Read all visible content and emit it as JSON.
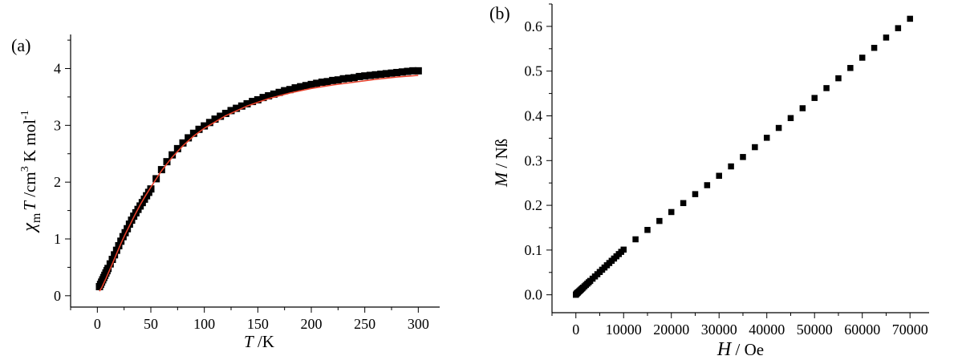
{
  "chart_data": [
    {
      "type": "scatter",
      "panel_label": "(a)",
      "xlabel_italic": "T",
      "xlabel_rest": " /K",
      "ylabel_chi": "χ",
      "ylabel_sub": "m",
      "ylabel_T": "T",
      "ylabel_pre": " /cm",
      "ylabel_sup": "3",
      "ylabel_mid": " K mol",
      "ylabel_sup2": "-1",
      "xlim": [
        -25,
        320
      ],
      "ylim": [
        -0.2,
        4.6
      ],
      "xticks": [
        0,
        50,
        100,
        150,
        200,
        250,
        300
      ],
      "xtick_labels": [
        "0",
        "50",
        "100",
        "150",
        "200",
        "250",
        "300"
      ],
      "yticks": [
        0,
        1,
        2,
        3,
        4
      ],
      "ytick_labels": [
        "0",
        "1",
        "2",
        "3",
        "4"
      ],
      "marker_color": "#000000",
      "fit_color": "#e8402a",
      "series": [
        {
          "name": "experimental",
          "x": [
            2,
            3,
            4,
            5,
            6,
            7,
            8,
            9,
            10,
            12,
            14,
            16,
            18,
            20,
            22,
            24,
            26,
            28,
            30,
            32,
            34,
            36,
            38,
            40,
            42,
            44,
            46,
            48,
            50,
            55,
            60,
            65,
            70,
            75,
            80,
            85,
            90,
            95,
            100,
            105,
            110,
            115,
            120,
            125,
            130,
            135,
            140,
            145,
            150,
            155,
            160,
            165,
            170,
            175,
            180,
            185,
            190,
            195,
            200,
            205,
            210,
            215,
            220,
            225,
            230,
            235,
            240,
            245,
            250,
            255,
            260,
            265,
            270,
            275,
            280,
            285,
            290,
            295,
            300
          ],
          "y": [
            0.16,
            0.2,
            0.24,
            0.28,
            0.32,
            0.36,
            0.4,
            0.44,
            0.48,
            0.56,
            0.64,
            0.72,
            0.8,
            0.88,
            0.96,
            1.04,
            1.11,
            1.18,
            1.26,
            1.33,
            1.4,
            1.46,
            1.52,
            1.58,
            1.64,
            1.7,
            1.76,
            1.82,
            1.88,
            2.06,
            2.22,
            2.36,
            2.48,
            2.59,
            2.69,
            2.78,
            2.86,
            2.93,
            2.99,
            3.05,
            3.11,
            3.16,
            3.21,
            3.26,
            3.3,
            3.34,
            3.38,
            3.42,
            3.45,
            3.49,
            3.52,
            3.55,
            3.58,
            3.61,
            3.63,
            3.66,
            3.68,
            3.7,
            3.72,
            3.74,
            3.76,
            3.77,
            3.79,
            3.8,
            3.82,
            3.83,
            3.84,
            3.86,
            3.87,
            3.88,
            3.89,
            3.9,
            3.91,
            3.92,
            3.93,
            3.94,
            3.95,
            3.96,
            3.96
          ]
        },
        {
          "name": "fit",
          "x": [
            2,
            4,
            6,
            8,
            10,
            14,
            18,
            22,
            26,
            30,
            35,
            40,
            45,
            50,
            60,
            70,
            80,
            90,
            100,
            120,
            140,
            160,
            180,
            200,
            220,
            240,
            260,
            280,
            300
          ],
          "y": [
            0.08,
            0.14,
            0.22,
            0.3,
            0.39,
            0.56,
            0.74,
            0.92,
            1.08,
            1.23,
            1.42,
            1.6,
            1.76,
            1.91,
            2.2,
            2.44,
            2.64,
            2.81,
            2.95,
            3.17,
            3.34,
            3.47,
            3.57,
            3.65,
            3.71,
            3.76,
            3.81,
            3.85,
            3.88
          ]
        }
      ]
    },
    {
      "type": "scatter",
      "panel_label": "(b)",
      "xlabel_italic": "H",
      "xlabel_rest": " / Oe",
      "ylabel_italic": "M",
      "ylabel_rest": " / Nß",
      "xlim": [
        -5000,
        74000
      ],
      "ylim": [
        -0.04,
        0.65
      ],
      "xticks": [
        0,
        10000,
        20000,
        30000,
        40000,
        50000,
        60000,
        70000
      ],
      "xtick_labels": [
        "0",
        "10000",
        "20000",
        "30000",
        "40000",
        "50000",
        "60000",
        "70000"
      ],
      "yticks": [
        0.0,
        0.1,
        0.2,
        0.3,
        0.4,
        0.5,
        0.6
      ],
      "ytick_labels": [
        "0.0",
        "0.1",
        "0.2",
        "0.3",
        "0.4",
        "0.5",
        "0.6"
      ],
      "marker_color": "#000000",
      "series": [
        {
          "name": "magnetization",
          "x": [
            0,
            100,
            200,
            300,
            400,
            500,
            700,
            900,
            1100,
            1300,
            1500,
            1800,
            2100,
            2400,
            2700,
            3000,
            3500,
            4000,
            4500,
            5000,
            5500,
            6000,
            6500,
            7000,
            7500,
            8000,
            8500,
            9000,
            9500,
            10000,
            12500,
            15000,
            17500,
            20000,
            22500,
            25000,
            27500,
            30000,
            32500,
            35000,
            37500,
            40000,
            42500,
            45000,
            47500,
            50000,
            52500,
            55000,
            57500,
            60000,
            62500,
            65000,
            67500,
            70000
          ],
          "y": [
            0.0,
            0.002,
            0.003,
            0.004,
            0.005,
            0.006,
            0.008,
            0.01,
            0.012,
            0.014,
            0.016,
            0.019,
            0.022,
            0.025,
            0.028,
            0.031,
            0.036,
            0.041,
            0.046,
            0.051,
            0.056,
            0.061,
            0.066,
            0.071,
            0.076,
            0.081,
            0.086,
            0.091,
            0.096,
            0.101,
            0.124,
            0.145,
            0.165,
            0.185,
            0.205,
            0.225,
            0.245,
            0.266,
            0.287,
            0.308,
            0.33,
            0.351,
            0.373,
            0.395,
            0.417,
            0.44,
            0.462,
            0.484,
            0.507,
            0.53,
            0.552,
            0.575,
            0.596,
            0.617
          ]
        }
      ]
    }
  ]
}
